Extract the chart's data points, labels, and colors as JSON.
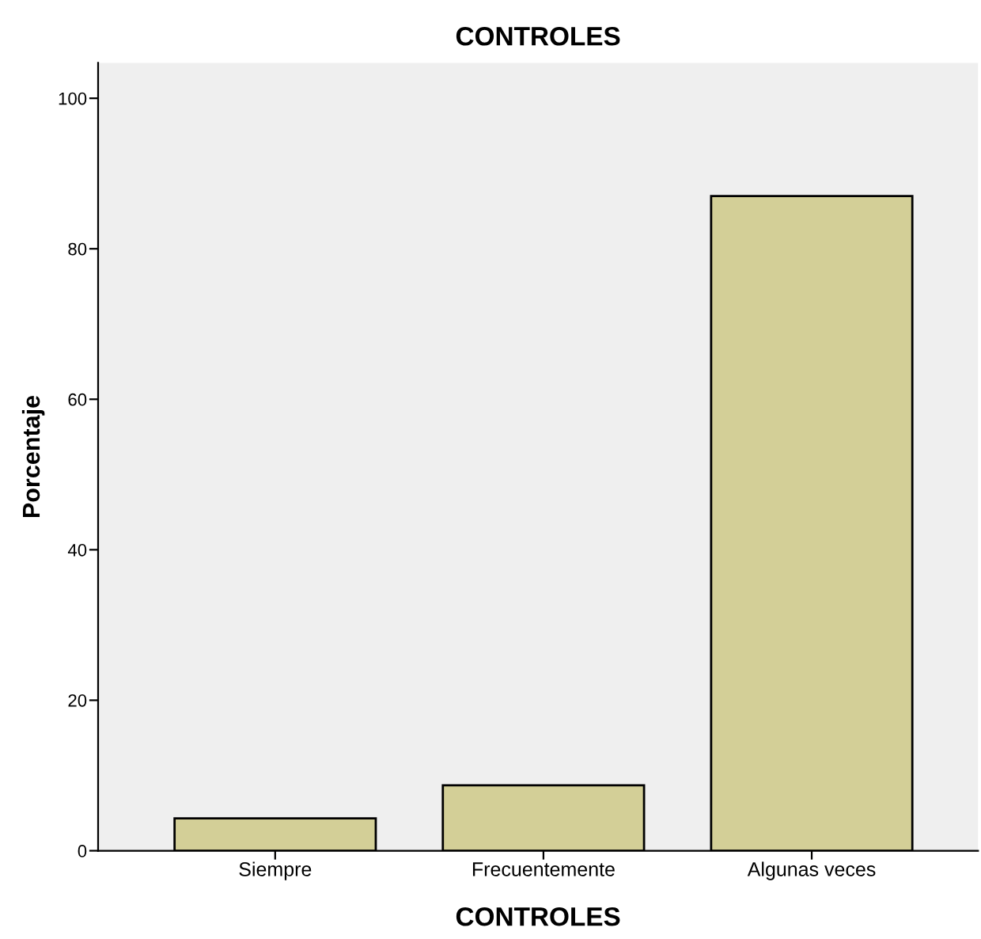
{
  "chart_data": {
    "type": "bar",
    "title": "CONTROLES",
    "xlabel": "CONTROLES",
    "ylabel": "Porcentaje",
    "categories": [
      "Siempre",
      "Frecuentemente",
      "Algunas veces"
    ],
    "values": [
      4.3,
      8.7,
      87.0
    ],
    "color": "#d3cf97",
    "ylim": [
      0,
      104.7
    ],
    "yticks": [
      0,
      20,
      40,
      60,
      80,
      100
    ],
    "grid": false,
    "legend": false
  }
}
